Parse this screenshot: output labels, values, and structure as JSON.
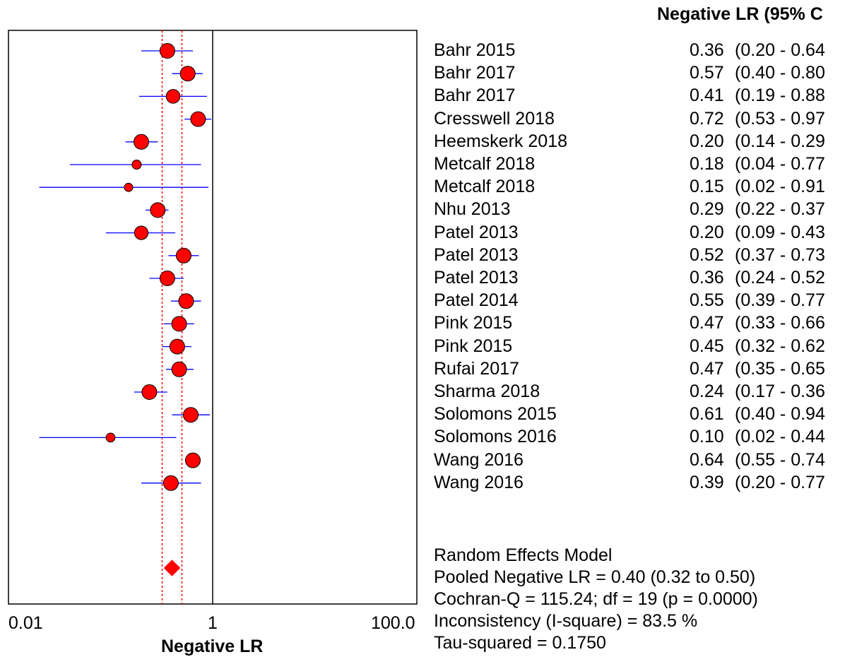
{
  "chart_data": {
    "type": "forest",
    "xlabel": "Negative LR",
    "x_scale": "log",
    "xlim": [
      0.01,
      100
    ],
    "x_ticks": [
      "0.01",
      "1",
      "100.0"
    ],
    "column_header": "Negative LR (95% C",
    "reference_line": 1,
    "studies": [
      {
        "name": "Bahr 2015",
        "value": 0.36,
        "value_label": "0.36",
        "ci_low": 0.2,
        "ci_high": 0.64,
        "ci_label": "(0.20 - 0.64"
      },
      {
        "name": "Bahr 2017",
        "value": 0.57,
        "value_label": "0.57",
        "ci_low": 0.4,
        "ci_high": 0.8,
        "ci_label": "(0.40 - 0.80"
      },
      {
        "name": "Bahr 2017",
        "value": 0.41,
        "value_label": "0.41",
        "ci_low": 0.19,
        "ci_high": 0.88,
        "ci_label": "(0.19 - 0.88"
      },
      {
        "name": "Cresswell 2018",
        "value": 0.72,
        "value_label": "0.72",
        "ci_low": 0.53,
        "ci_high": 0.97,
        "ci_label": "(0.53 - 0.97"
      },
      {
        "name": "Heemskerk 2018",
        "value": 0.2,
        "value_label": "0.20",
        "ci_low": 0.14,
        "ci_high": 0.29,
        "ci_label": "(0.14 - 0.29"
      },
      {
        "name": "Metcalf 2018",
        "value": 0.18,
        "value_label": "0.18",
        "ci_low": 0.04,
        "ci_high": 0.77,
        "ci_label": "(0.04 - 0.77"
      },
      {
        "name": "Metcalf 2018",
        "value": 0.15,
        "value_label": "0.15",
        "ci_low": 0.02,
        "ci_high": 0.91,
        "ci_label": "(0.02 - 0.91"
      },
      {
        "name": "Nhu 2013",
        "value": 0.29,
        "value_label": "0.29",
        "ci_low": 0.22,
        "ci_high": 0.37,
        "ci_label": "(0.22 - 0.37"
      },
      {
        "name": "Patel 2013",
        "value": 0.2,
        "value_label": "0.20",
        "ci_low": 0.09,
        "ci_high": 0.43,
        "ci_label": "(0.09 - 0.43"
      },
      {
        "name": "Patel 2013",
        "value": 0.52,
        "value_label": "0.52",
        "ci_low": 0.37,
        "ci_high": 0.73,
        "ci_label": "(0.37 - 0.73"
      },
      {
        "name": "Patel 2013",
        "value": 0.36,
        "value_label": "0.36",
        "ci_low": 0.24,
        "ci_high": 0.52,
        "ci_label": "(0.24 - 0.52"
      },
      {
        "name": "Patel 2014",
        "value": 0.55,
        "value_label": "0.55",
        "ci_low": 0.39,
        "ci_high": 0.77,
        "ci_label": "(0.39 - 0.77"
      },
      {
        "name": "Pink 2015",
        "value": 0.47,
        "value_label": "0.47",
        "ci_low": 0.33,
        "ci_high": 0.66,
        "ci_label": "(0.33 - 0.66"
      },
      {
        "name": "Pink 2015",
        "value": 0.45,
        "value_label": "0.45",
        "ci_low": 0.32,
        "ci_high": 0.62,
        "ci_label": "(0.32 - 0.62"
      },
      {
        "name": "Rufai 2017",
        "value": 0.47,
        "value_label": "0.47",
        "ci_low": 0.35,
        "ci_high": 0.65,
        "ci_label": "(0.35 - 0.65"
      },
      {
        "name": "Sharma 2018",
        "value": 0.24,
        "value_label": "0.24",
        "ci_low": 0.17,
        "ci_high": 0.36,
        "ci_label": "(0.17 - 0.36"
      },
      {
        "name": "Solomons 2015",
        "value": 0.61,
        "value_label": "0.61",
        "ci_low": 0.4,
        "ci_high": 0.94,
        "ci_label": "(0.40 - 0.94"
      },
      {
        "name": "Solomons 2016",
        "value": 0.1,
        "value_label": "0.10",
        "ci_low": 0.02,
        "ci_high": 0.44,
        "ci_label": "(0.02 - 0.44"
      },
      {
        "name": "Wang 2016",
        "value": 0.64,
        "value_label": "0.64",
        "ci_low": 0.55,
        "ci_high": 0.74,
        "ci_label": "(0.55 - 0.74"
      },
      {
        "name": "Wang 2016",
        "value": 0.39,
        "value_label": "0.39",
        "ci_low": 0.2,
        "ci_high": 0.77,
        "ci_label": "(0.20 - 0.77"
      }
    ],
    "pooled": {
      "value": 0.4,
      "ci_low": 0.32,
      "ci_high": 0.5
    },
    "summary_lines": [
      "Random Effects Model",
      "Pooled Negative LR = 0.40 (0.32 to 0.50)",
      "Cochran-Q = 115.24; df =  19 (p = 0.0000)",
      "Inconsistency (I-square) = 83.5 %",
      "Tau-squared = 0.1750"
    ],
    "colors": {
      "marker_fill": "#ff0000",
      "marker_stroke": "#000000",
      "ci_line": "#0000ff",
      "pooled_ci_line": "#ff0000",
      "axes": "#000000"
    }
  }
}
